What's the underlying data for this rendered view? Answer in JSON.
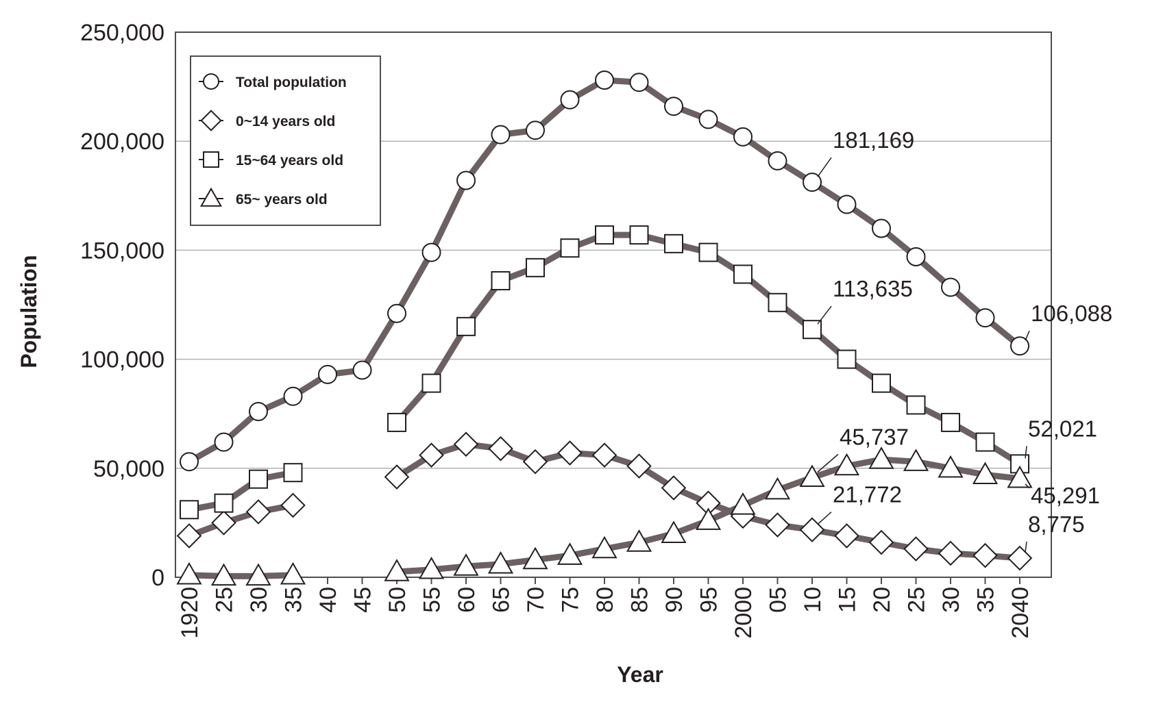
{
  "chart_data": {
    "type": "line",
    "title": "",
    "xlabel": "Year",
    "ylabel": "Population",
    "ylim": [
      0,
      250000
    ],
    "y_ticks": [
      0,
      50000,
      100000,
      150000,
      200000,
      250000
    ],
    "y_tick_labels": [
      "0",
      "50,000",
      "100,000",
      "150,000",
      "200,000",
      "250,000"
    ],
    "x": [
      1920,
      1925,
      1930,
      1935,
      1940,
      1945,
      1950,
      1955,
      1960,
      1965,
      1970,
      1975,
      1980,
      1985,
      1990,
      1995,
      2000,
      2005,
      2010,
      2015,
      2020,
      2025,
      2030,
      2035,
      2040
    ],
    "x_tick_labels": [
      "1920",
      "25",
      "30",
      "35",
      "40",
      "45",
      "50",
      "55",
      "60",
      "65",
      "70",
      "75",
      "80",
      "85",
      "90",
      "95",
      "2000",
      "05",
      "10",
      "15",
      "20",
      "25",
      "30",
      "35",
      "2040"
    ],
    "grid": "horizontal",
    "legend_position": "top-left",
    "series": [
      {
        "name": "Total population",
        "marker": "circle",
        "values": [
          53000,
          62000,
          76000,
          83000,
          93000,
          95000,
          121000,
          149000,
          182000,
          203000,
          205000,
          219000,
          228000,
          227000,
          216000,
          210000,
          202000,
          191000,
          181169,
          171000,
          160000,
          147000,
          133000,
          119000,
          106088
        ]
      },
      {
        "name": "0~14 years old",
        "marker": "diamond",
        "values": [
          19000,
          25000,
          30000,
          33000,
          null,
          null,
          46000,
          56000,
          61000,
          59000,
          53000,
          57000,
          56000,
          51000,
          41000,
          34000,
          28000,
          24000,
          21772,
          19000,
          16000,
          13000,
          11000,
          10000,
          8775
        ]
      },
      {
        "name": "15~64 years old",
        "marker": "square",
        "values": [
          31000,
          34000,
          45000,
          48000,
          null,
          null,
          71000,
          89000,
          115000,
          136000,
          142000,
          151000,
          157000,
          157000,
          153000,
          149000,
          139000,
          126000,
          113635,
          100000,
          89000,
          79000,
          71000,
          62000,
          52021
        ]
      },
      {
        "name": "65~ years old",
        "marker": "triangle",
        "values": [
          1000,
          500,
          500,
          1000,
          null,
          null,
          2500,
          3500,
          5000,
          6000,
          8000,
          10000,
          13000,
          16000,
          20000,
          26000,
          33000,
          40000,
          45737,
          51000,
          54000,
          53000,
          50000,
          47000,
          45291
        ]
      }
    ],
    "annotations": [
      {
        "text": "181,169",
        "series": "Total population",
        "x": 2010
      },
      {
        "text": "106,088",
        "series": "Total population",
        "x": 2040
      },
      {
        "text": "113,635",
        "series": "15~64 years old",
        "x": 2010
      },
      {
        "text": "52,021",
        "series": "15~64 years old",
        "x": 2040
      },
      {
        "text": "45,737",
        "series": "65~ years old",
        "x": 2010
      },
      {
        "text": "45,291",
        "series": "65~ years old",
        "x": 2040
      },
      {
        "text": "21,772",
        "series": "0~14 years old",
        "x": 2010
      },
      {
        "text": "8,775",
        "series": "0~14 years old",
        "x": 2040
      }
    ],
    "colors": {
      "line": "#6b6163",
      "marker_stroke": "#231f20",
      "marker_fill": "#ffffff",
      "grid": "#b3b3b3",
      "frame": "#4d4d4d",
      "text": "#231f20"
    }
  }
}
